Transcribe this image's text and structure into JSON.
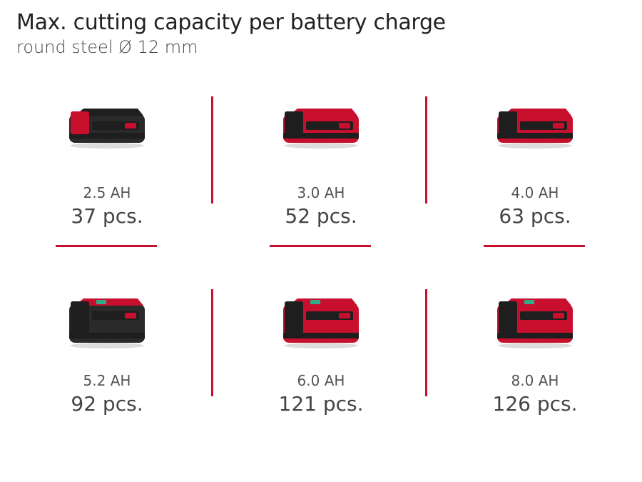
{
  "title": "Max. cutting capacity per battery charge",
  "subtitle": "round steel Ø 12 mm",
  "accent_color": "#c8102e",
  "batteries": [
    {
      "capacity": "2.5 AH",
      "result": "37 pcs.",
      "style": "dark-small"
    },
    {
      "capacity": "3.0 AH",
      "result": "52 pcs.",
      "style": "red-small"
    },
    {
      "capacity": "4.0 AH",
      "result": "63 pcs.",
      "style": "red-small"
    },
    {
      "capacity": "5.2 AH",
      "result": "92 pcs.",
      "style": "dark-large"
    },
    {
      "capacity": "6.0 AH",
      "result": "121 pcs.",
      "style": "red-large"
    },
    {
      "capacity": "8.0 AH",
      "result": "126 pcs.",
      "style": "red-large"
    }
  ]
}
